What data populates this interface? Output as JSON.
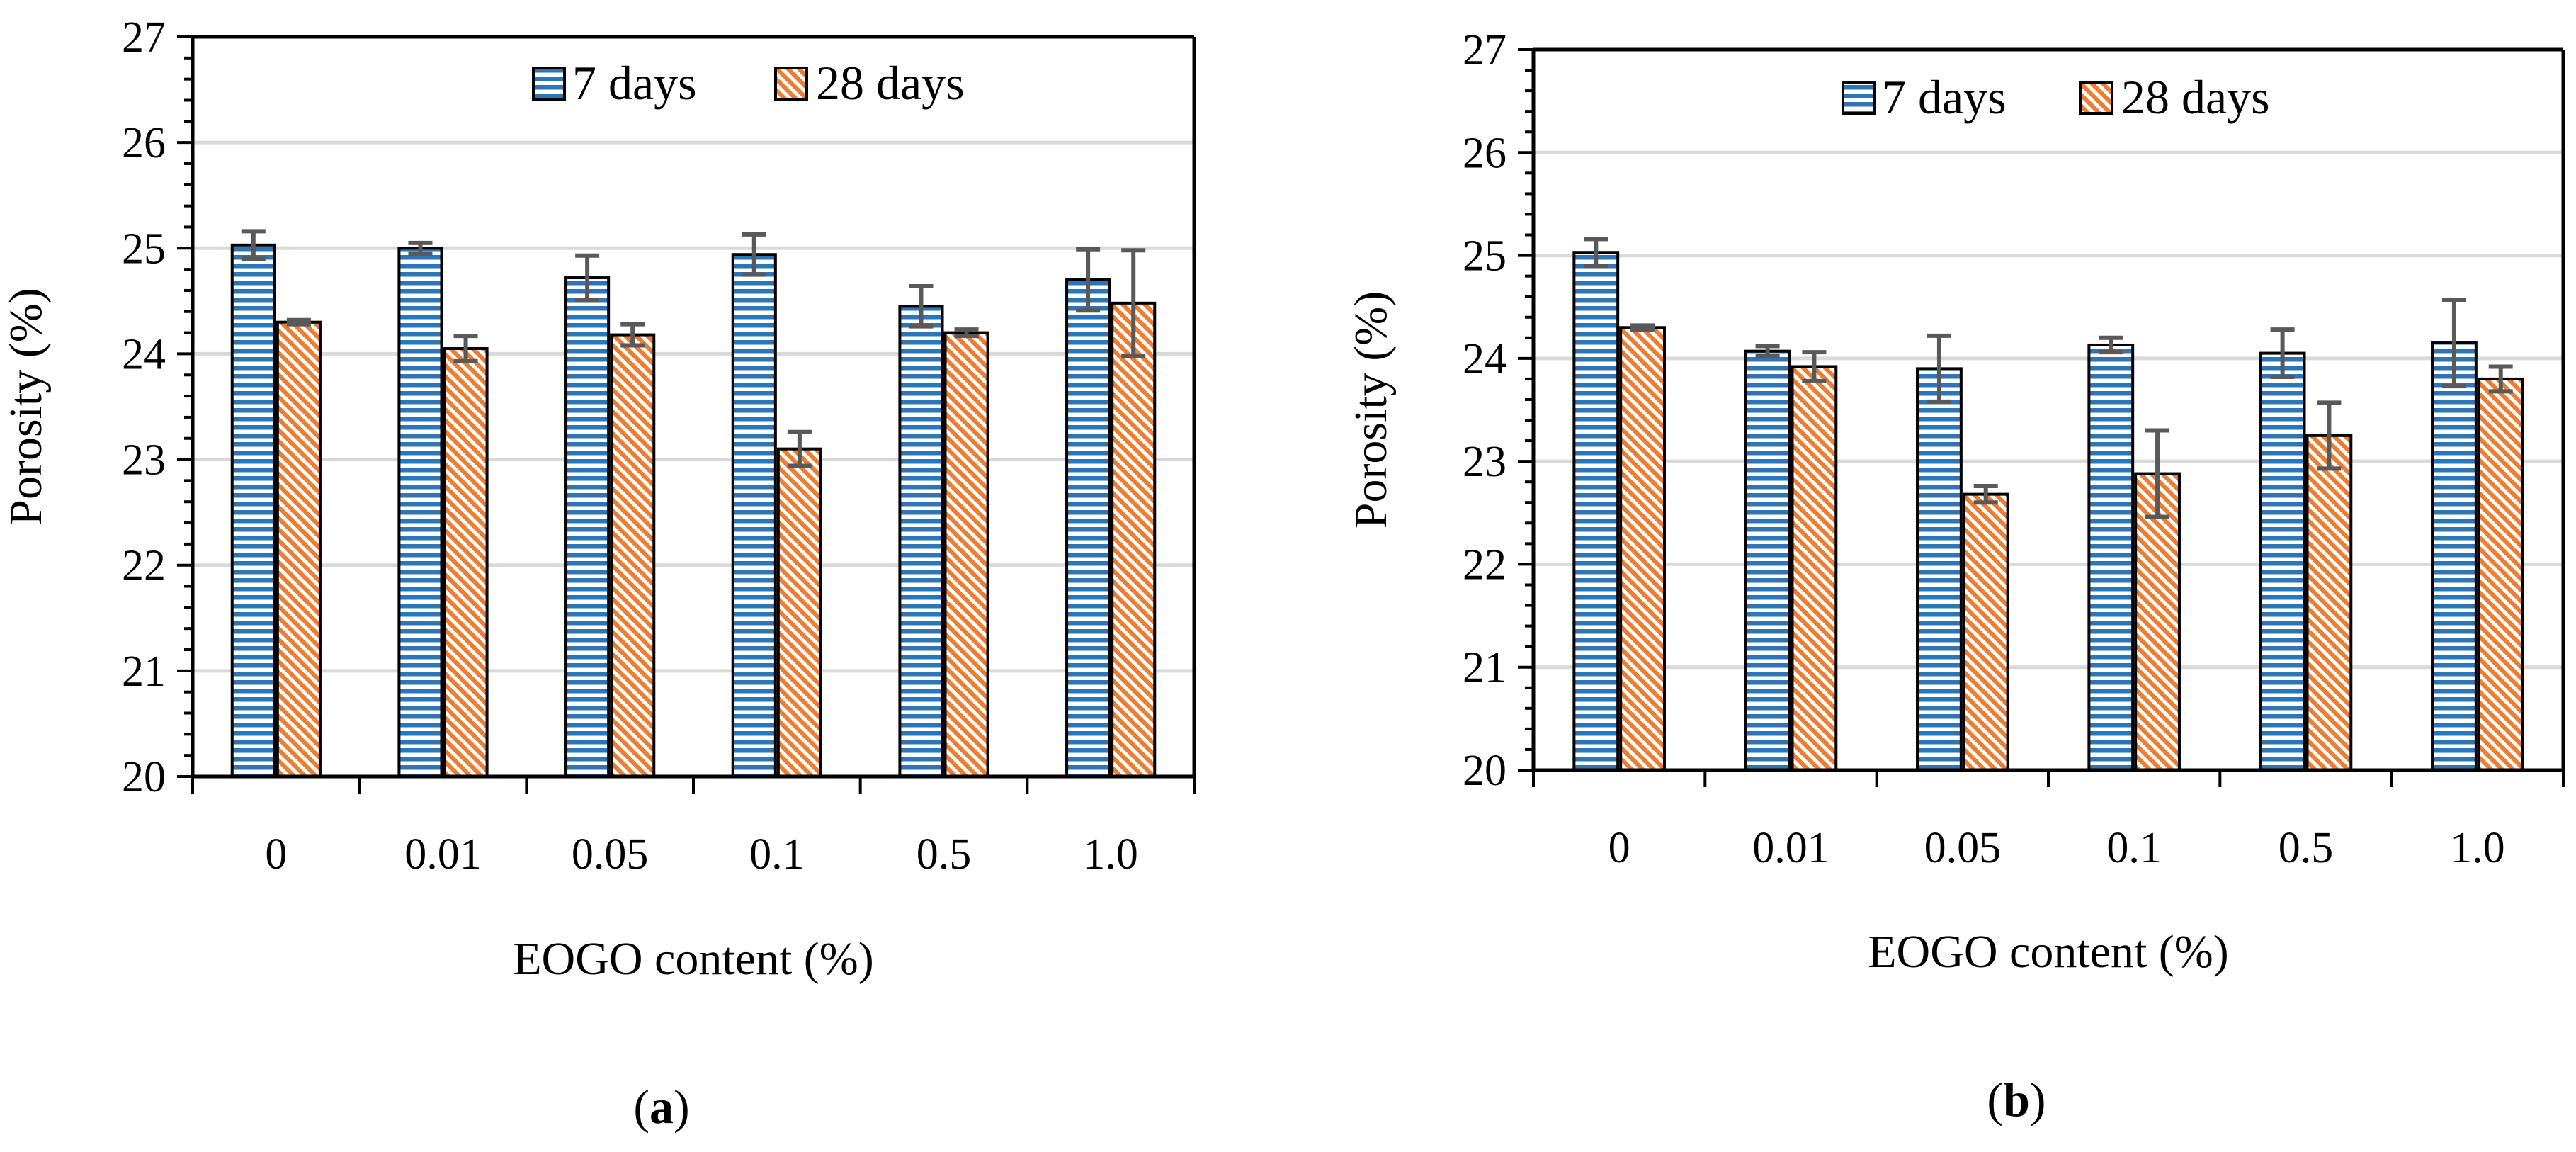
{
  "chart_data": [
    {
      "type": "bar",
      "panel_label": "a",
      "categories": [
        "0",
        "0.01",
        "0.05",
        "0.1",
        "0.5",
        "1.0"
      ],
      "series": [
        {
          "name": "7 days",
          "values": [
            25.03,
            25.0,
            24.72,
            24.94,
            24.45,
            24.7
          ],
          "errors": [
            0.13,
            0.05,
            0.21,
            0.19,
            0.19,
            0.29
          ]
        },
        {
          "name": "28 days",
          "values": [
            24.3,
            24.05,
            24.18,
            23.1,
            24.2,
            24.48
          ],
          "errors": [
            0.02,
            0.12,
            0.1,
            0.16,
            0.03,
            0.5
          ]
        }
      ],
      "xlabel": "EOGO content (%)",
      "ylabel": "Porosity (%)",
      "ylim": [
        20,
        27
      ],
      "yticks": [
        "20",
        "21",
        "22",
        "23",
        "24",
        "25",
        "26",
        "27"
      ],
      "grid": true,
      "legend_position": "top"
    },
    {
      "type": "bar",
      "panel_label": "b",
      "categories": [
        "0",
        "0.01",
        "0.05",
        "0.1",
        "0.5",
        "1.0"
      ],
      "series": [
        {
          "name": "7 days",
          "values": [
            25.03,
            24.07,
            23.9,
            24.13,
            24.05,
            24.15
          ],
          "errors": [
            0.13,
            0.05,
            0.32,
            0.07,
            0.23,
            0.42
          ]
        },
        {
          "name": "28 days",
          "values": [
            24.3,
            23.92,
            22.68,
            22.88,
            23.25,
            23.8
          ],
          "errors": [
            0.02,
            0.14,
            0.08,
            0.42,
            0.32,
            0.12
          ]
        }
      ],
      "xlabel": "EOGO content (%)",
      "ylabel": "Porosity (%)",
      "ylim": [
        20,
        27
      ],
      "yticks": [
        "20",
        "21",
        "22",
        "23",
        "24",
        "25",
        "26",
        "27"
      ],
      "grid": true,
      "legend_position": "top"
    }
  ],
  "colors": {
    "series_7_days": "#2E75B6",
    "series_28_days": "#ED7D31",
    "gridline": "#D9D9D9",
    "error_bar": "#595959",
    "axis": "#000000"
  }
}
